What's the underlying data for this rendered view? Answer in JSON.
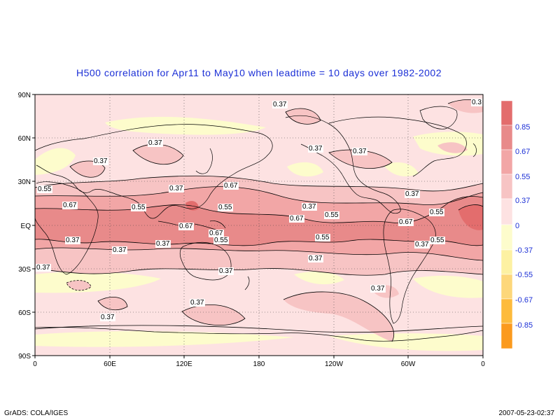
{
  "title": "H500 correlation for  Apr11 to May10  when leadtime =  10 days over 1982-2002",
  "footer": {
    "credit": "GrADS: COLA/IGES",
    "timestamp": "2007-05-23-02:37"
  },
  "axes": {
    "lat_ticks": [
      "90N",
      "60N",
      "30N",
      "EQ",
      "30S",
      "60S",
      "90S"
    ],
    "lon_ticks": [
      "0",
      "60E",
      "120E",
      "180",
      "120W",
      "60W",
      "0"
    ]
  },
  "colorbar": {
    "labels": [
      "0.85",
      "0.67",
      "0.55",
      "0.37",
      "0",
      "-0.37",
      "-0.55",
      "-0.67",
      "-0.85"
    ],
    "label_color_pos": "#1b2fd6",
    "colors": [
      "#e36d6d",
      "#e88a8a",
      "#f2a6a6",
      "#f7c4c4",
      "#fde2e2",
      "#fdfccc",
      "#fdf1a2",
      "#fdd77a",
      "#fdbb3c",
      "#fb9a1e"
    ]
  },
  "contour_labels": [
    "0.37",
    "0.37",
    "0.37",
    "0.37",
    "0.37",
    "0.37",
    "0.37",
    "0.37",
    "0.55",
    "0.67",
    "0.55",
    "0.67",
    "0.55",
    "0.67",
    "0.55",
    "0.67",
    "0.55",
    "0.55",
    "0.67",
    "0.55",
    "0.67",
    "0.37",
    "0.55",
    "0.37",
    "0.37",
    "0.37",
    "0.37",
    "0.37",
    "0.37",
    "0.37",
    "0.37",
    "0.37",
    "0.3"
  ],
  "colors": {
    "background": "#fde2e2",
    "frame": "#000000",
    "title": "#1b2fd6"
  }
}
